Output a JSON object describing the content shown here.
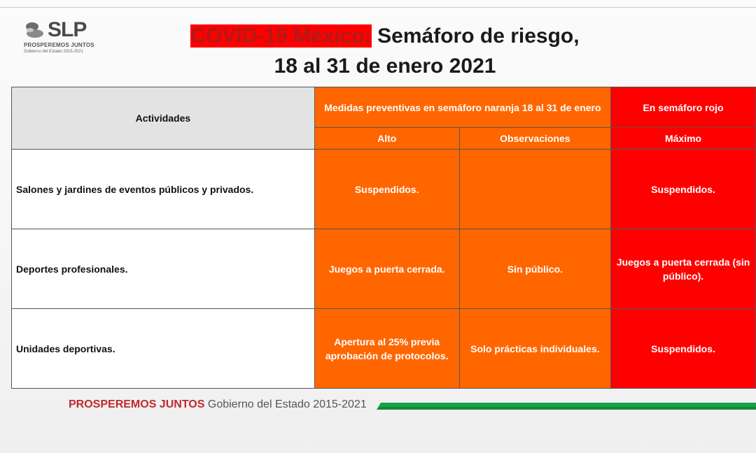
{
  "logo": {
    "text": "SLP",
    "line1": "PROSPEREMOS JUNTOS",
    "line2": "Gobierno del Estado 2015-2021"
  },
  "title": {
    "part1": "COVID-19 México:",
    "part2": " Semáforo de riesgo,",
    "line2": "18 al 31 de enero 2021"
  },
  "table": {
    "header_activities": "Actividades",
    "header_orange": "Medidas preventivas en semáforo naranja 18 al 31 de enero",
    "header_red": "En semáforo rojo",
    "sub_high": "Alto",
    "sub_observations": "Observaciones",
    "sub_max": "Máximo",
    "rows": [
      {
        "activity": "Salones y jardines de eventos públicos y privados.",
        "high": "Suspendidos.",
        "observations": "",
        "max": "Suspendidos."
      },
      {
        "activity": "Deportes profesionales.",
        "high": "Juegos a puerta cerrada.",
        "observations": "Sin público.",
        "max": "Juegos a puerta cerrada (sin público)."
      },
      {
        "activity": "Unidades deportivas.",
        "high": "Apertura al 25% previa aprobación de protocolos.",
        "observations": "Solo prácticas individuales.",
        "max": "Suspendidos."
      }
    ]
  },
  "footer": {
    "brand": "PROSPEREMOS JUNTOS",
    "gov": "Gobierno del Estado 2015-2021"
  },
  "colors": {
    "orange": "#ff6600",
    "red": "#ff0000",
    "title_red": "#b01a1a",
    "footer_green": "#1aa14a"
  }
}
